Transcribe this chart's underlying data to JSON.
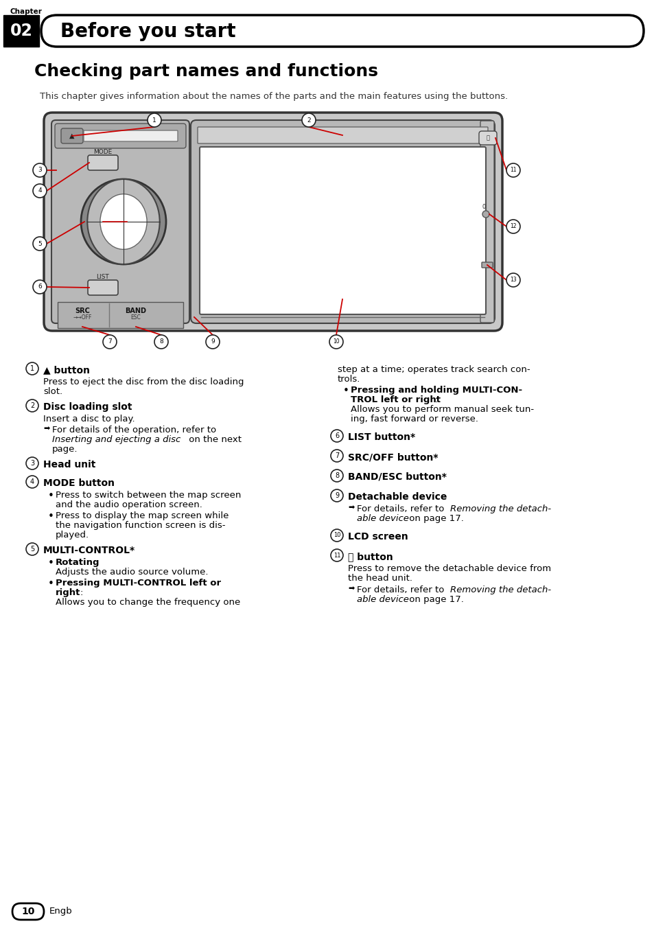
{
  "bg_color": "#ffffff",
  "chapter_label": "Chapter",
  "chapter_num": "02",
  "chapter_title": "Before you start",
  "section_title": "Checking part names and functions",
  "intro_text": "This chapter gives information about the names of the parts and the main features using the buttons.",
  "page_num": "10",
  "page_label": "Engb"
}
